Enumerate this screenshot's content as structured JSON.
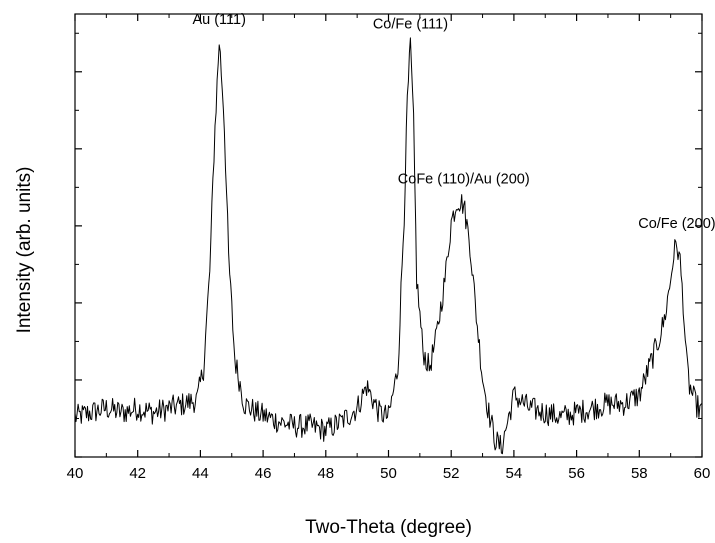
{
  "chart_data": {
    "type": "line",
    "xlabel": "Two-Theta (degree)",
    "ylabel": "Intensity (arb. units)",
    "xlim": [
      40,
      60
    ],
    "x_ticks": [
      40,
      42,
      44,
      46,
      48,
      50,
      52,
      54,
      56,
      58,
      60
    ],
    "x_tick_labels": [
      "40",
      "42",
      "44",
      "46",
      "48",
      "50",
      "52",
      "54",
      "56",
      "58",
      "60"
    ],
    "ylim": [
      0,
      100
    ],
    "y_tick_labels_shown": false,
    "grid": false,
    "legend": "none",
    "line_color": "#000000",
    "series": [
      {
        "x": [
          40.0,
          40.5,
          41.0,
          41.5,
          42.0,
          42.5,
          43.0,
          43.5,
          43.9,
          44.1,
          44.3,
          44.45,
          44.6,
          44.75,
          44.9,
          45.1,
          45.4,
          45.8,
          46.5,
          47.0,
          47.5,
          48.0,
          48.5,
          49.0,
          49.3,
          49.5,
          49.7,
          50.0,
          50.3,
          50.5,
          50.6,
          50.7,
          50.8,
          50.9,
          51.1,
          51.3,
          51.5,
          51.8,
          52.0,
          52.2,
          52.4,
          52.6,
          52.8,
          53.0,
          53.2,
          53.4,
          53.6,
          53.8,
          54.0,
          54.5,
          55.0,
          55.5,
          56.0,
          56.5,
          57.0,
          57.5,
          58.0,
          58.3,
          58.6,
          58.8,
          59.0,
          59.1,
          59.2,
          59.3,
          59.4,
          59.5,
          59.6,
          59.8,
          60.0
        ],
        "y": [
          9,
          10,
          11,
          10,
          11,
          10,
          11,
          12,
          13,
          20,
          42,
          72,
          94,
          78,
          45,
          22,
          12,
          10,
          8,
          7,
          7,
          6,
          8,
          11,
          16,
          13,
          10,
          9,
          20,
          55,
          80,
          93,
          75,
          40,
          24,
          20,
          26,
          40,
          53,
          58,
          57,
          48,
          32,
          18,
          10,
          4,
          2,
          8,
          14,
          11,
          10,
          9,
          10,
          11,
          12,
          12,
          14,
          20,
          26,
          31,
          40,
          46,
          48,
          44,
          35,
          22,
          16,
          12,
          10
        ]
      }
    ],
    "annotations": [
      {
        "text": "Au (111)",
        "x": 44.6,
        "y": 100
      },
      {
        "text": "Co/Fe (111)",
        "x": 50.7,
        "y": 99
      },
      {
        "text": "CoFe (110)/Au (200)",
        "x": 52.4,
        "y": 64
      },
      {
        "text": "Co/Fe (200)",
        "x": 59.2,
        "y": 54
      }
    ]
  }
}
